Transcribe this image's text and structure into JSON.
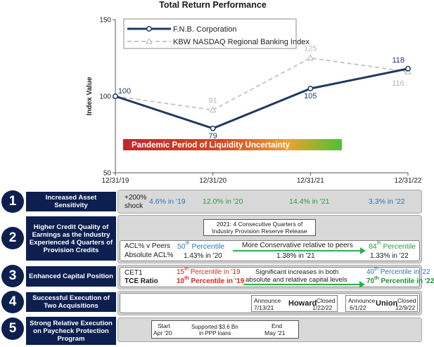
{
  "chart_data": {
    "type": "line",
    "title": "Total Return Performance",
    "ylabel": "Index Value",
    "ylim": [
      50,
      150
    ],
    "yticks": [
      "50",
      "100",
      "150"
    ],
    "categories": [
      "12/31/19",
      "12/31/20",
      "12/31/21",
      "12/31/22"
    ],
    "series": [
      {
        "name": "F.N.B. Corporation",
        "values": [
          100,
          79,
          105,
          118
        ],
        "labels": [
          "100",
          "79",
          "105",
          "118"
        ],
        "color": "#1f3864",
        "style": "solid"
      },
      {
        "name": "KBW NASDAQ Regional Banking Index",
        "values": [
          100,
          91,
          125,
          116
        ],
        "labels": [
          "",
          "91",
          "125",
          "116"
        ],
        "color": "#c8c8c8",
        "style": "dashed"
      }
    ],
    "annotation": "Pandemic Period of Liquidity Uncertainty"
  },
  "rows": [
    {
      "num": "1",
      "label": "Increased Asset Sensitivity"
    },
    {
      "num": "2",
      "label": "Higher Credit Quality of Earnings as the Industry Experienced 4 Quarters of Provision Credits"
    },
    {
      "num": "3",
      "label": "Enhanced Capital Position"
    },
    {
      "num": "4",
      "label": "Successful Execution of Two Acquisitions"
    },
    {
      "num": "5",
      "label": "Strong Relative Execution on Paycheck Protection Program"
    }
  ],
  "row1": {
    "shock_top": "+200%",
    "shock_bottom": "shock",
    "v1": "4.6% in '19",
    "v2": "12.0% in '20",
    "v3": "14.4% in '21",
    "v4": "3.3% in '22"
  },
  "row2": {
    "note_line1": "2021: 4 Consecutive Quarters of",
    "note_line2": "Industry Provision Reserve Release",
    "acl_label": "ACL% v Peers",
    "abs_label": "Absolute ACL%",
    "p_left_num": "50",
    "p_left_sup": "th",
    "p_word": "Percentile",
    "arrow_text": "More Conservative relative to peers",
    "p_right_num": "84",
    "p_right_sup": "th",
    "a20": "1.43% in '20",
    "a21": "1.38% in '21",
    "a22": "1.33% in '22"
  },
  "row3": {
    "cet1": "CET1",
    "tce": "TCE Ratio",
    "c1_num": "15",
    "c1_sup": "th",
    "c1_rest": " Percentile in '19",
    "c2_num": "10",
    "c2_sup": "th",
    "c2_rest": " Percentile in '19",
    "mid_line1": "Significant increases in both",
    "mid_line2": "absolute and relative capital levels",
    "r1_num": "40",
    "r1_sup": "th",
    "r1_rest": " Percentile in '22",
    "r2_num": "70",
    "r2_sup": "th",
    "r2_rest": " Percentile in '22"
  },
  "row4": {
    "h_announce_1": "Announce",
    "h_announce_2": "7/13/21",
    "h_name": "Howard",
    "h_closed_1": "Closed",
    "h_closed_2": "1/22/22",
    "u_announce_1": "Announce",
    "u_announce_2": "6/1/22",
    "u_name": "Union",
    "u_closed_1": "Closed",
    "u_closed_2": "12/9/22"
  },
  "row5": {
    "start_1": "Start",
    "start_2": "Apr '20",
    "mid_1": "Supported $3.6 Bn",
    "mid_2": "in PPP loans",
    "end_1": "End",
    "end_2": "May '21"
  }
}
